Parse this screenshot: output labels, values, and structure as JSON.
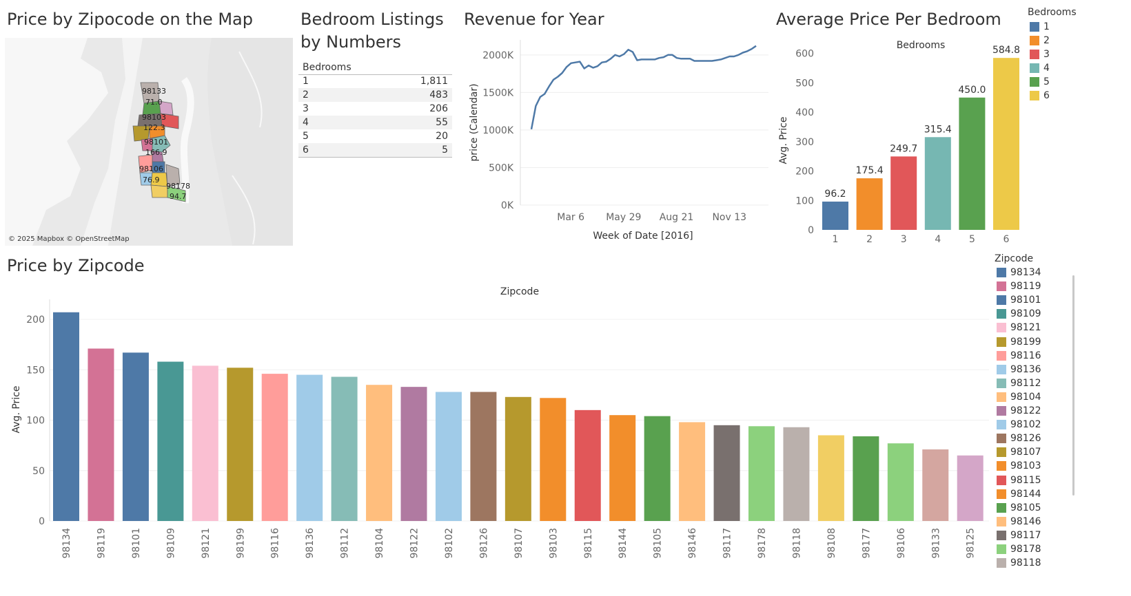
{
  "map": {
    "title": "Price by Zipocode on the Map",
    "attribution": "© 2025 Mapbox © OpenStreetMap",
    "labels": [
      {
        "zip": "98133",
        "price": "71.0"
      },
      {
        "zip": "98103",
        "price": "122.3"
      },
      {
        "zip": "98101",
        "price": "166.9"
      },
      {
        "zip": "98106",
        "price": "76.9"
      },
      {
        "zip": "98178",
        "price": "94.7"
      }
    ]
  },
  "listings": {
    "title_line1": "Bedroom Listings",
    "title_line2": "by Numbers",
    "header": "Bedrooms",
    "rows": [
      {
        "bedrooms": "1",
        "count": "1,811"
      },
      {
        "bedrooms": "2",
        "count": "483"
      },
      {
        "bedrooms": "3",
        "count": "206"
      },
      {
        "bedrooms": "4",
        "count": "55"
      },
      {
        "bedrooms": "5",
        "count": "20"
      },
      {
        "bedrooms": "6",
        "count": "5"
      }
    ]
  },
  "revenue": {
    "title": "Revenue for Year"
  },
  "avg_bedroom": {
    "title": "Average Price Per Bedroom"
  },
  "bedroom_legend": {
    "title": "Bedrooms",
    "items": [
      {
        "label": "1",
        "color": "#4e79a7"
      },
      {
        "label": "2",
        "color": "#f28e2b"
      },
      {
        "label": "3",
        "color": "#e15759"
      },
      {
        "label": "4",
        "color": "#76b7b2"
      },
      {
        "label": "5",
        "color": "#59a14f"
      },
      {
        "label": "6",
        "color": "#edc948"
      }
    ]
  },
  "zip": {
    "title": "Price by Zipcode"
  },
  "zip_legend": {
    "title": "Zipcode",
    "items": [
      {
        "label": "98134",
        "color": "#4e79a7"
      },
      {
        "label": "98119",
        "color": "#d37295"
      },
      {
        "label": "98101",
        "color": "#4e79a7"
      },
      {
        "label": "98109",
        "color": "#499894"
      },
      {
        "label": "98121",
        "color": "#fabfd2"
      },
      {
        "label": "98199",
        "color": "#b6992d"
      },
      {
        "label": "98116",
        "color": "#ff9d9a"
      },
      {
        "label": "98136",
        "color": "#a0cbe8"
      },
      {
        "label": "98112",
        "color": "#86bcb6"
      },
      {
        "label": "98104",
        "color": "#ffbe7d"
      },
      {
        "label": "98122",
        "color": "#b07aa1"
      },
      {
        "label": "98102",
        "color": "#a0cbe8"
      },
      {
        "label": "98126",
        "color": "#9d7660"
      },
      {
        "label": "98107",
        "color": "#b6992d"
      },
      {
        "label": "98103",
        "color": "#f28e2b"
      },
      {
        "label": "98115",
        "color": "#e15759"
      },
      {
        "label": "98144",
        "color": "#f28e2b"
      },
      {
        "label": "98105",
        "color": "#59a14f"
      },
      {
        "label": "98146",
        "color": "#ffbe7d"
      },
      {
        "label": "98117",
        "color": "#79706e"
      },
      {
        "label": "98178",
        "color": "#8cd17d"
      },
      {
        "label": "98118",
        "color": "#bab0ac"
      }
    ]
  },
  "chart_data": [
    {
      "type": "line",
      "title": "Revenue for Year",
      "xlabel": "Week of Date [2016]",
      "ylabel": "price (Calendar)",
      "x_ticks": [
        "Mar 6",
        "May 29",
        "Aug 21",
        "Nov 13"
      ],
      "y_ticks": [
        "0K",
        "500K",
        "1000K",
        "1500K",
        "2000K"
      ],
      "ylim": [
        0,
        2200000
      ],
      "color": "#4e79a7",
      "x": [
        0,
        1,
        2,
        3,
        4,
        5,
        6,
        7,
        8,
        9,
        10,
        11,
        12,
        13,
        14,
        15,
        16,
        17,
        18,
        19,
        20,
        21,
        22,
        23,
        24,
        25,
        26,
        27,
        28,
        29,
        30,
        31,
        32,
        33,
        34,
        35,
        36,
        37,
        38,
        39,
        40,
        41,
        42,
        43,
        44,
        45,
        46,
        47,
        48,
        49,
        50,
        51
      ],
      "values": [
        1010000,
        1320000,
        1440000,
        1480000,
        1580000,
        1670000,
        1710000,
        1760000,
        1840000,
        1890000,
        1900000,
        1910000,
        1820000,
        1860000,
        1830000,
        1850000,
        1900000,
        1910000,
        1950000,
        2000000,
        1980000,
        2010000,
        2070000,
        2040000,
        1930000,
        1940000,
        1940000,
        1940000,
        1940000,
        1960000,
        1970000,
        2000000,
        2000000,
        1960000,
        1950000,
        1950000,
        1950000,
        1920000,
        1920000,
        1920000,
        1920000,
        1920000,
        1930000,
        1940000,
        1960000,
        1980000,
        1980000,
        2000000,
        2030000,
        2050000,
        2080000,
        2120000
      ]
    },
    {
      "type": "bar",
      "title": "Bedrooms",
      "xlabel": "",
      "ylabel": "Avg. Price",
      "categories": [
        "1",
        "2",
        "3",
        "4",
        "5",
        "6"
      ],
      "values": [
        96.2,
        175.4,
        249.7,
        315.4,
        450.0,
        584.8
      ],
      "data_labels": [
        "96.2",
        "175.4",
        "249.7",
        "315.4",
        "450.0",
        "584.8"
      ],
      "colors": [
        "#4e79a7",
        "#f28e2b",
        "#e15759",
        "#76b7b2",
        "#59a14f",
        "#edc948"
      ],
      "y_ticks": [
        "0",
        "100",
        "200",
        "300",
        "400",
        "500",
        "600"
      ],
      "ylim": [
        0,
        640
      ]
    },
    {
      "type": "bar",
      "title": "Zipcode",
      "xlabel": "",
      "ylabel": "Avg. Price",
      "categories": [
        "98134",
        "98119",
        "98101",
        "98109",
        "98121",
        "98199",
        "98116",
        "98136",
        "98112",
        "98104",
        "98122",
        "98102",
        "98126",
        "98107",
        "98103",
        "98115",
        "98144",
        "98105",
        "98146",
        "98117",
        "98178",
        "98118",
        "98108",
        "98177",
        "98106",
        "98133",
        "98125"
      ],
      "values": [
        207,
        171,
        167,
        158,
        154,
        152,
        146,
        145,
        143,
        135,
        133,
        128,
        128,
        123,
        122,
        110,
        105,
        104,
        98,
        95,
        94,
        93,
        85,
        84,
        77,
        71,
        65
      ],
      "colors": [
        "#4e79a7",
        "#d37295",
        "#4e79a7",
        "#499894",
        "#fabfd2",
        "#b6992d",
        "#ff9d9a",
        "#a0cbe8",
        "#86bcb6",
        "#ffbe7d",
        "#b07aa1",
        "#a0cbe8",
        "#9d7660",
        "#b6992d",
        "#f28e2b",
        "#e15759",
        "#f28e2b",
        "#59a14f",
        "#ffbe7d",
        "#79706e",
        "#8cd17d",
        "#bab0ac",
        "#f1ce63",
        "#59a14f",
        "#8cd17d",
        "#d4a6a0",
        "#d4a6c8"
      ],
      "y_ticks": [
        "0",
        "50",
        "100",
        "150",
        "200"
      ],
      "ylim": [
        0,
        220
      ]
    }
  ]
}
